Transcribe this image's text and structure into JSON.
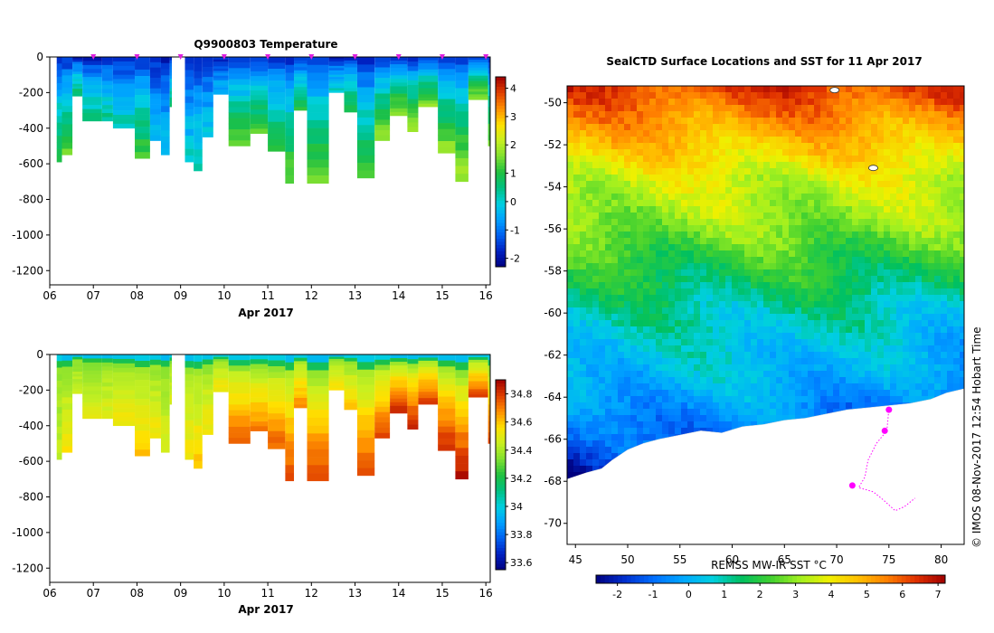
{
  "colors": {
    "background": "#ffffff",
    "axis": "#000000",
    "marker": "#e020e0",
    "land": "#ffffff",
    "track": "#ff00ff"
  },
  "temp_ramp": [
    "#00007f",
    "#0020c0",
    "#0060f0",
    "#00a0ff",
    "#00d0e0",
    "#00c080",
    "#20c040",
    "#80e030",
    "#c8f020",
    "#ffe000",
    "#ff9000",
    "#e04000",
    "#a00000"
  ],
  "sst_ramp": [
    "#00007f",
    "#0030d0",
    "#0070ff",
    "#00a8ff",
    "#00d0e0",
    "#00c060",
    "#40d030",
    "#a0f020",
    "#f0f000",
    "#ffc000",
    "#ff8000",
    "#e03000",
    "#a00000"
  ],
  "chart_data": [
    {
      "id": "temperature",
      "type": "heatmap",
      "title": "Q9900803  Temperature",
      "xlabel": "Apr 2017",
      "ylabel": "",
      "x_ticks": [
        "06",
        "07",
        "08",
        "09",
        "10",
        "11",
        "12",
        "13",
        "14",
        "15",
        "16"
      ],
      "x_range": [
        6,
        16.1
      ],
      "y_ticks": [
        "0",
        "-200",
        "-400",
        "-600",
        "-800",
        "-1000",
        "-1200"
      ],
      "y_range": [
        -1280,
        0
      ],
      "colorbar": {
        "ticks": [
          "-2",
          "-1",
          "0",
          "1",
          "2",
          "3",
          "4"
        ],
        "range": [
          -2.3,
          4.4
        ]
      },
      "profile_markers": [
        7.0,
        8.0,
        9.0,
        10.0,
        11.0,
        12.0,
        13.0,
        14.0,
        15.0,
        16.0
      ],
      "profiles": [
        {
          "start": 6.16,
          "end": 6.28,
          "depth": 590,
          "bottom": 1.2
        },
        {
          "start": 6.28,
          "end": 6.52,
          "depth": 550,
          "bottom": 1.5
        },
        {
          "start": 6.52,
          "end": 6.75,
          "depth": 220,
          "bottom": 0.8
        },
        {
          "start": 6.75,
          "end": 7.2,
          "depth": 360,
          "bottom": 0.6
        },
        {
          "start": 7.2,
          "end": 7.45,
          "depth": 360,
          "bottom": 0.5
        },
        {
          "start": 7.45,
          "end": 7.95,
          "depth": 400,
          "bottom": 0.3
        },
        {
          "start": 7.95,
          "end": 8.3,
          "depth": 570,
          "bottom": 1.3
        },
        {
          "start": 8.3,
          "end": 8.55,
          "depth": 470,
          "bottom": -0.2
        },
        {
          "start": 8.55,
          "end": 8.75,
          "depth": 550,
          "bottom": -0.1
        },
        {
          "start": 8.75,
          "end": 8.8,
          "depth": 280,
          "bottom": 0.6
        },
        {
          "start": 9.1,
          "end": 9.3,
          "depth": 590,
          "bottom": 0.1
        },
        {
          "start": 9.3,
          "end": 9.5,
          "depth": 640,
          "bottom": 0.3
        },
        {
          "start": 9.5,
          "end": 9.75,
          "depth": 450,
          "bottom": 0.0
        },
        {
          "start": 9.75,
          "end": 10.1,
          "depth": 210,
          "bottom": -0.3
        },
        {
          "start": 10.1,
          "end": 10.6,
          "depth": 500,
          "bottom": 1.4
        },
        {
          "start": 10.6,
          "end": 11.0,
          "depth": 430,
          "bottom": 1.3
        },
        {
          "start": 11.0,
          "end": 11.4,
          "depth": 530,
          "bottom": 1.2
        },
        {
          "start": 11.4,
          "end": 11.6,
          "depth": 710,
          "bottom": 1.5
        },
        {
          "start": 11.6,
          "end": 11.9,
          "depth": 300,
          "bottom": 1.0
        },
        {
          "start": 11.9,
          "end": 12.4,
          "depth": 710,
          "bottom": 1.6
        },
        {
          "start": 12.4,
          "end": 12.75,
          "depth": 200,
          "bottom": 0.2
        },
        {
          "start": 12.75,
          "end": 13.05,
          "depth": 310,
          "bottom": 1.1
        },
        {
          "start": 13.05,
          "end": 13.45,
          "depth": 680,
          "bottom": 1.4
        },
        {
          "start": 13.45,
          "end": 13.8,
          "depth": 470,
          "bottom": 1.9
        },
        {
          "start": 13.8,
          "end": 14.2,
          "depth": 330,
          "bottom": 1.8
        },
        {
          "start": 14.2,
          "end": 14.45,
          "depth": 420,
          "bottom": 1.9
        },
        {
          "start": 14.45,
          "end": 14.9,
          "depth": 280,
          "bottom": 1.7
        },
        {
          "start": 14.9,
          "end": 15.3,
          "depth": 540,
          "bottom": 1.8
        },
        {
          "start": 15.3,
          "end": 15.6,
          "depth": 700,
          "bottom": 2.0
        },
        {
          "start": 15.6,
          "end": 16.05,
          "depth": 240,
          "bottom": 1.8
        },
        {
          "start": 16.05,
          "end": 16.1,
          "depth": 500,
          "bottom": 1.7
        }
      ]
    },
    {
      "id": "salinity",
      "type": "heatmap",
      "title": "",
      "xlabel": "Apr 2017",
      "ylabel": "",
      "x_ticks": [
        "06",
        "07",
        "08",
        "09",
        "10",
        "11",
        "12",
        "13",
        "14",
        "15",
        "16"
      ],
      "x_range": [
        6,
        16.1
      ],
      "y_ticks": [
        "0",
        "-200",
        "-400",
        "-600",
        "-800",
        "-1000",
        "-1200"
      ],
      "y_range": [
        -1280,
        0
      ],
      "colorbar": {
        "ticks": [
          "33.6",
          "33.8",
          "34",
          "34.2",
          "34.4",
          "34.6",
          "34.8"
        ],
        "range": [
          33.55,
          34.9
        ]
      },
      "profiles": [
        {
          "start": 6.16,
          "end": 6.28,
          "depth": 590,
          "bottom": 34.45
        },
        {
          "start": 6.28,
          "end": 6.52,
          "depth": 550,
          "bottom": 34.55
        },
        {
          "start": 6.52,
          "end": 6.75,
          "depth": 220,
          "bottom": 34.45
        },
        {
          "start": 6.75,
          "end": 7.2,
          "depth": 360,
          "bottom": 34.5
        },
        {
          "start": 7.2,
          "end": 7.45,
          "depth": 360,
          "bottom": 34.5
        },
        {
          "start": 7.45,
          "end": 7.95,
          "depth": 400,
          "bottom": 34.55
        },
        {
          "start": 7.95,
          "end": 8.3,
          "depth": 570,
          "bottom": 34.6
        },
        {
          "start": 8.3,
          "end": 8.55,
          "depth": 470,
          "bottom": 34.55
        },
        {
          "start": 8.55,
          "end": 8.75,
          "depth": 550,
          "bottom": 34.5
        },
        {
          "start": 8.75,
          "end": 8.8,
          "depth": 280,
          "bottom": 34.5
        },
        {
          "start": 9.1,
          "end": 9.3,
          "depth": 590,
          "bottom": 34.55
        },
        {
          "start": 9.3,
          "end": 9.5,
          "depth": 640,
          "bottom": 34.6
        },
        {
          "start": 9.5,
          "end": 9.75,
          "depth": 450,
          "bottom": 34.55
        },
        {
          "start": 9.75,
          "end": 10.1,
          "depth": 210,
          "bottom": 34.55
        },
        {
          "start": 10.1,
          "end": 10.6,
          "depth": 500,
          "bottom": 34.75
        },
        {
          "start": 10.6,
          "end": 11.0,
          "depth": 430,
          "bottom": 34.7
        },
        {
          "start": 11.0,
          "end": 11.4,
          "depth": 530,
          "bottom": 34.75
        },
        {
          "start": 11.4,
          "end": 11.6,
          "depth": 710,
          "bottom": 34.78
        },
        {
          "start": 11.6,
          "end": 11.9,
          "depth": 300,
          "bottom": 34.7
        },
        {
          "start": 11.9,
          "end": 12.4,
          "depth": 710,
          "bottom": 34.78
        },
        {
          "start": 12.4,
          "end": 12.75,
          "depth": 200,
          "bottom": 34.55
        },
        {
          "start": 12.75,
          "end": 13.05,
          "depth": 310,
          "bottom": 34.6
        },
        {
          "start": 13.05,
          "end": 13.45,
          "depth": 680,
          "bottom": 34.78
        },
        {
          "start": 13.45,
          "end": 13.8,
          "depth": 470,
          "bottom": 34.78
        },
        {
          "start": 13.8,
          "end": 14.2,
          "depth": 330,
          "bottom": 34.85
        },
        {
          "start": 14.2,
          "end": 14.45,
          "depth": 420,
          "bottom": 34.85
        },
        {
          "start": 14.45,
          "end": 14.9,
          "depth": 280,
          "bottom": 34.82
        },
        {
          "start": 14.9,
          "end": 15.3,
          "depth": 540,
          "bottom": 34.85
        },
        {
          "start": 15.3,
          "end": 15.6,
          "depth": 700,
          "bottom": 34.87
        },
        {
          "start": 15.6,
          "end": 16.05,
          "depth": 240,
          "bottom": 34.8
        },
        {
          "start": 16.05,
          "end": 16.1,
          "depth": 500,
          "bottom": 34.8
        }
      ]
    },
    {
      "id": "sst_map",
      "type": "heatmap",
      "title": "SealCTD Surface Locations and SST for 11 Apr 2017",
      "xlabel": "",
      "ylabel": "",
      "x_ticks": [
        "45",
        "50",
        "55",
        "60",
        "65",
        "70",
        "75",
        "80"
      ],
      "x_range": [
        44.2,
        82.2
      ],
      "y_ticks": [
        "-50",
        "-52",
        "-54",
        "-56",
        "-58",
        "-60",
        "-62",
        "-64",
        "-66",
        "-68",
        "-70"
      ],
      "y_range": [
        -71.0,
        -49.2
      ],
      "colorbar": {
        "label": "REMSS MW-IR SST °C",
        "ticks": [
          "-2",
          "-1",
          "0",
          "1",
          "2",
          "3",
          "4",
          "5",
          "6",
          "7"
        ],
        "range": [
          -2.6,
          7.2
        ]
      },
      "sst_profile": [
        {
          "lat": -49.2,
          "sst": 6.2
        },
        {
          "lat": -50.5,
          "sst": 5.4
        },
        {
          "lat": -51.5,
          "sst": 4.8
        },
        {
          "lat": -52.5,
          "sst": 4.2
        },
        {
          "lat": -53.5,
          "sst": 3.6
        },
        {
          "lat": -54.5,
          "sst": 3.3
        },
        {
          "lat": -55.5,
          "sst": 3.0
        },
        {
          "lat": -56.5,
          "sst": 2.5
        },
        {
          "lat": -57.5,
          "sst": 2.0
        },
        {
          "lat": -58.5,
          "sst": 1.6
        },
        {
          "lat": -59.5,
          "sst": 1.1
        },
        {
          "lat": -60.5,
          "sst": 0.8
        },
        {
          "lat": -61.5,
          "sst": 0.5
        },
        {
          "lat": -62.5,
          "sst": 0.3
        },
        {
          "lat": -63.5,
          "sst": 0.0
        },
        {
          "lat": -64.5,
          "sst": -0.4
        },
        {
          "lat": -66.0,
          "sst": -0.9
        },
        {
          "lat": -67.5,
          "sst": -1.4
        }
      ],
      "coastline": [
        {
          "lon": 44.2,
          "lat": -67.9
        },
        {
          "lon": 46.0,
          "lat": -67.6
        },
        {
          "lon": 47.5,
          "lat": -67.4
        },
        {
          "lon": 48.5,
          "lat": -67.0
        },
        {
          "lon": 50.0,
          "lat": -66.5
        },
        {
          "lon": 51.5,
          "lat": -66.2
        },
        {
          "lon": 53.0,
          "lat": -66.0
        },
        {
          "lon": 55.0,
          "lat": -65.8
        },
        {
          "lon": 57.0,
          "lat": -65.6
        },
        {
          "lon": 59.0,
          "lat": -65.7
        },
        {
          "lon": 61.0,
          "lat": -65.4
        },
        {
          "lon": 63.0,
          "lat": -65.3
        },
        {
          "lon": 65.0,
          "lat": -65.1
        },
        {
          "lon": 67.0,
          "lat": -65.0
        },
        {
          "lon": 69.0,
          "lat": -64.8
        },
        {
          "lon": 71.0,
          "lat": -64.6
        },
        {
          "lon": 73.0,
          "lat": -64.5
        },
        {
          "lon": 75.0,
          "lat": -64.4
        },
        {
          "lon": 77.0,
          "lat": -64.3
        },
        {
          "lon": 79.0,
          "lat": -64.1
        },
        {
          "lon": 80.5,
          "lat": -63.8
        },
        {
          "lon": 82.2,
          "lat": -63.6
        }
      ],
      "islands": [
        {
          "lon": 69.8,
          "lat": -49.4
        },
        {
          "lon": 73.5,
          "lat": -53.1
        }
      ],
      "seal_track": [
        {
          "lon": 75.0,
          "lat": -64.5
        },
        {
          "lon": 74.9,
          "lat": -65.1
        },
        {
          "lon": 74.8,
          "lat": -65.6
        },
        {
          "lon": 73.8,
          "lat": -66.2
        },
        {
          "lon": 73.0,
          "lat": -67.0
        },
        {
          "lon": 72.7,
          "lat": -67.8
        },
        {
          "lon": 72.1,
          "lat": -68.3
        },
        {
          "lon": 73.5,
          "lat": -68.5
        },
        {
          "lon": 74.5,
          "lat": -68.9
        },
        {
          "lon": 75.6,
          "lat": -69.4
        },
        {
          "lon": 76.5,
          "lat": -69.2
        },
        {
          "lon": 77.5,
          "lat": -68.8
        }
      ],
      "seal_surface_clusters": [
        {
          "lon": 75.0,
          "lat": -64.6
        },
        {
          "lon": 74.6,
          "lat": -65.6
        },
        {
          "lon": 71.5,
          "lat": -68.2
        }
      ]
    }
  ],
  "credit": "©  IMOS 08-Nov-2017 12:54 Hobart Time"
}
